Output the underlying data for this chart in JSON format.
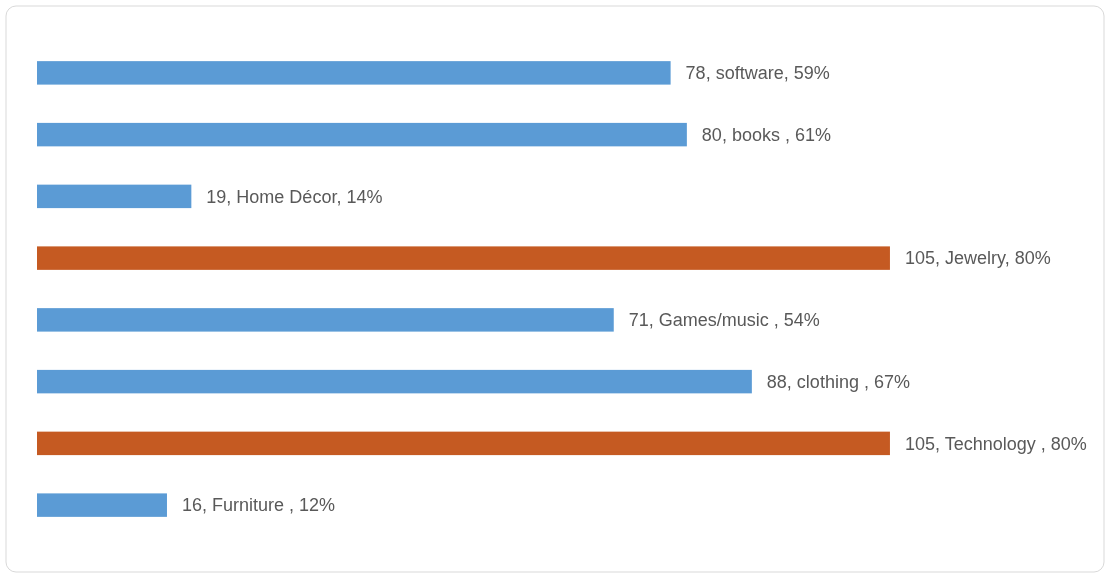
{
  "chart_data": {
    "type": "bar",
    "orientation": "horizontal",
    "categories": [
      null,
      null,
      null,
      null,
      null,
      null,
      null,
      null
    ],
    "values": [
      78,
      80,
      19,
      105,
      71,
      88,
      105,
      16
    ],
    "colors": [
      "#5b9bd5",
      "#5b9bd5",
      "#5b9bd5",
      "#c55a22",
      "#5b9bd5",
      "#5b9bd5",
      "#c55a22",
      "#5b9bd5"
    ],
    "value_labels": [
      "78, software, 59%",
      "80, books , 61%",
      "19, Home Décor, 14%",
      "105, Jewelry, 80%",
      "71, Games/music , 54%",
      "88, clothing , 67%",
      "105, Technology , 80%",
      "16, Furniture , 12%"
    ]
  }
}
